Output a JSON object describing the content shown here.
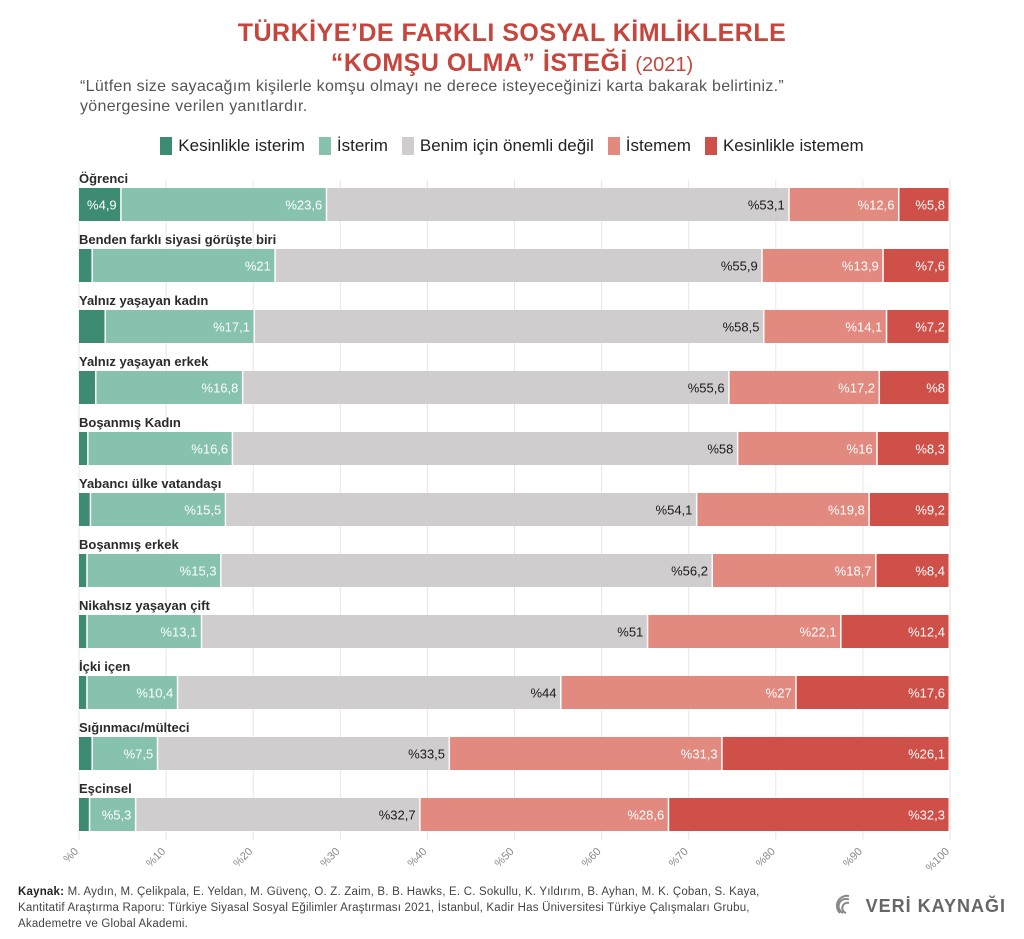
{
  "title_line1": "TÜRKİYE’DE FARKLI SOSYAL KİMLİKLERLE",
  "title_line2": "“KOMŞU OLMA” İSTEĞİ",
  "title_year": "(2021)",
  "subtitle_line1": "“Lütfen size sayacağım kişilerle komşu olmayı ne derece isteyeceğinizi karta bakarak belirtiniz.”",
  "subtitle_line2": "yönergesine verilen yanıtlardır.",
  "colors": {
    "kesinlikle_isterim": "#3e8b73",
    "isterim": "#86c2ae",
    "onemli_degil": "#cfcdcd",
    "istemem": "#e38a80",
    "kesinlikle_istemem": "#cf5049"
  },
  "footer": {
    "label": "Kaynak:",
    "text": "M. Aydın, M. Çelikpala, E. Yeldan, M. Güvenç, O. Z. Zaim, B. B. Hawks, E. C. Sokullu, K. Yıldırım, B. Ayhan, M. K. Çoban, S. Kaya, Kantitatif Araştırma Raporu: Türkiye Siyasal Sosyal Eğilimler Araştırması 2021, İstanbul, Kadir Has Üniversitesi Türkiye Çalışmaları Grubu, Akademetre ve Global Akademi."
  },
  "logo_text": "VERİ KAYNAĞI",
  "chart_data": {
    "type": "bar",
    "orientation": "horizontal",
    "stacked": true,
    "xlim": [
      0,
      100
    ],
    "x_ticks": [
      "%0",
      "%10",
      "%20",
      "%30",
      "%40",
      "%50",
      "%60",
      "%70",
      "%80",
      "%90",
      "%100"
    ],
    "legend_position": "top",
    "series": [
      {
        "name": "Kesinlikle isterim",
        "color": "#3e8b73"
      },
      {
        "name": "İsterim",
        "color": "#86c2ae"
      },
      {
        "name": "Benim için önemli değil",
        "color": "#cfcdcd"
      },
      {
        "name": "İstemem",
        "color": "#e38a80"
      },
      {
        "name": "Kesinlikle istemem",
        "color": "#cf5049"
      }
    ],
    "categories": [
      {
        "label": "Öğrenci",
        "values": [
          4.9,
          23.6,
          53.1,
          12.6,
          5.8
        ],
        "labels": [
          "%4,9",
          "%23,6",
          "%53,1",
          "%12,6",
          "%5,8"
        ]
      },
      {
        "label": "Benden farklı siyasi görüşte biri",
        "values": [
          1.6,
          21,
          55.9,
          13.9,
          7.6
        ],
        "labels": [
          "",
          "%21",
          "%55,9",
          "%13,9",
          "%7,6"
        ]
      },
      {
        "label": "Yalnız yaşayan kadın",
        "values": [
          3.1,
          17.1,
          58.5,
          14.1,
          7.2
        ],
        "labels": [
          "",
          "%17,1",
          "%58,5",
          "%14,1",
          "%7,2"
        ]
      },
      {
        "label": "Yalnız yaşayan erkek",
        "values": [
          2.0,
          16.8,
          55.6,
          17.2,
          8
        ],
        "labels": [
          "",
          "%16,8",
          "%55,6",
          "%17,2",
          "%8"
        ]
      },
      {
        "label": "Boşanmış Kadın",
        "values": [
          1.1,
          16.6,
          58,
          16,
          8.3
        ],
        "labels": [
          "",
          "%16,6",
          "%58",
          "%16",
          "%8,3"
        ]
      },
      {
        "label": "Yabancı ülke vatandaşı",
        "values": [
          1.4,
          15.5,
          54.1,
          19.8,
          9.2
        ],
        "labels": [
          "",
          "%15,5",
          "%54,1",
          "%19,8",
          "%9,2"
        ]
      },
      {
        "label": "Boşanmış erkek",
        "values": [
          1.0,
          15.3,
          56.2,
          18.7,
          8.4
        ],
        "labels": [
          "",
          "%15,3",
          "%56,2",
          "%18,7",
          "%8,4"
        ]
      },
      {
        "label": "Nikahsız yaşayan çift",
        "values": [
          1.0,
          13.1,
          51,
          22.1,
          12.4
        ],
        "labels": [
          "",
          "%13,1",
          "%51",
          "%22,1",
          "%12,4"
        ]
      },
      {
        "label": "İçki içen",
        "values": [
          1.0,
          10.4,
          44,
          27,
          17.6
        ],
        "labels": [
          "",
          "%10,4",
          "%44",
          "%27",
          "%17,6"
        ]
      },
      {
        "label": "Sığınmacı/mülteci",
        "values": [
          1.6,
          7.5,
          33.5,
          31.3,
          26.1
        ],
        "labels": [
          "",
          "%7,5",
          "%33,5",
          "%31,3",
          "%26,1"
        ]
      },
      {
        "label": "Eşcinsel",
        "values": [
          1.3,
          5.3,
          32.7,
          28.6,
          32.3
        ],
        "labels": [
          "",
          "%5,3",
          "%32,7",
          "%28,6",
          "%32,3"
        ]
      }
    ]
  }
}
